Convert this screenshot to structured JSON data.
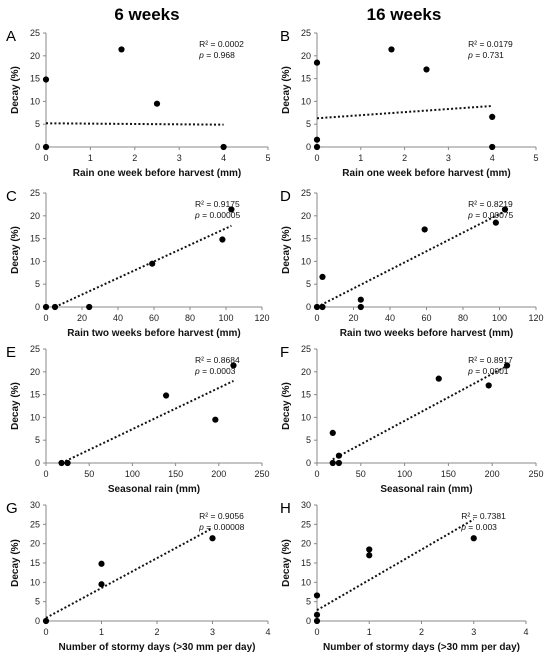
{
  "columns": [
    "6 weeks",
    "16 weeks"
  ],
  "chart_data": [
    {
      "panel": "A",
      "type": "scatter",
      "xlabel": "Rain one week before harvest (mm)",
      "ylabel": "Decay (%)",
      "xlim": [
        0,
        5
      ],
      "ylim": [
        0,
        25
      ],
      "xticks": [
        0,
        1,
        2,
        3,
        4,
        5
      ],
      "yticks": [
        0,
        5,
        10,
        15,
        20,
        25
      ],
      "points": [
        [
          0,
          14.8
        ],
        [
          0,
          0
        ],
        [
          1.7,
          21.4
        ],
        [
          2.5,
          9.5
        ],
        [
          4,
          0
        ]
      ],
      "trend": {
        "x": [
          0,
          4
        ],
        "y": [
          5.2,
          4.9
        ]
      },
      "r2_text": "R² = 0.0002",
      "p_label": "p",
      "p_text": " = 0.968"
    },
    {
      "panel": "B",
      "type": "scatter",
      "xlabel": "Rain one week before harvest (mm)",
      "ylabel": "Decay (%)",
      "xlim": [
        0,
        5
      ],
      "ylim": [
        0,
        25
      ],
      "xticks": [
        0,
        1,
        2,
        3,
        4,
        5
      ],
      "yticks": [
        0,
        5,
        10,
        15,
        20,
        25
      ],
      "points": [
        [
          0,
          18.5
        ],
        [
          0,
          1.6
        ],
        [
          0,
          0
        ],
        [
          1.7,
          21.4
        ],
        [
          2.5,
          17.0
        ],
        [
          4,
          6.6
        ],
        [
          4,
          0
        ]
      ],
      "trend": {
        "x": [
          0,
          4
        ],
        "y": [
          6.3,
          9.0
        ]
      },
      "r2_text": "R² = 0.0179",
      "p_label": "p",
      "p_text": " = 0.731"
    },
    {
      "panel": "C",
      "type": "scatter",
      "xlabel": "Rain two weeks before harvest (mm)",
      "ylabel": "Decay (%)",
      "xlim": [
        0,
        120
      ],
      "ylim": [
        0,
        25
      ],
      "xticks": [
        0,
        20,
        40,
        60,
        80,
        100,
        120
      ],
      "yticks": [
        0,
        5,
        10,
        15,
        20,
        25
      ],
      "points": [
        [
          0,
          0
        ],
        [
          5,
          0
        ],
        [
          24,
          0
        ],
        [
          59,
          9.5
        ],
        [
          98,
          14.8
        ],
        [
          103,
          21.4
        ]
      ],
      "trend": {
        "x": [
          5,
          103
        ],
        "y": [
          0,
          17.8
        ]
      },
      "r2_text": "R² = 0.9175",
      "p_label": "p",
      "p_text": " = 0.00005"
    },
    {
      "panel": "D",
      "type": "scatter",
      "xlabel": "Rain two weeks before harvest (mm)",
      "ylabel": "Decay (%)",
      "xlim": [
        0,
        120
      ],
      "ylim": [
        0,
        25
      ],
      "xticks": [
        0,
        20,
        40,
        60,
        80,
        100,
        120
      ],
      "yticks": [
        0,
        5,
        10,
        15,
        20,
        25
      ],
      "points": [
        [
          0,
          0
        ],
        [
          3,
          0
        ],
        [
          3,
          6.6
        ],
        [
          24,
          1.6
        ],
        [
          24,
          0
        ],
        [
          59,
          17.0
        ],
        [
          98,
          18.5
        ],
        [
          103,
          21.4
        ]
      ],
      "trend": {
        "x": [
          0,
          103
        ],
        "y": [
          0,
          21.0
        ]
      },
      "r2_text": "R² = 0.8219",
      "p_label": "p",
      "p_text": " = 0.00075"
    },
    {
      "panel": "E",
      "type": "scatter",
      "xlabel": "Seasonal rain (mm)",
      "ylabel": "Decay (%)",
      "xlim": [
        0,
        250
      ],
      "ylim": [
        0,
        25
      ],
      "xticks": [
        0,
        50,
        100,
        150,
        200,
        250
      ],
      "yticks": [
        0,
        5,
        10,
        15,
        20,
        25
      ],
      "points": [
        [
          18,
          0
        ],
        [
          25,
          0
        ],
        [
          139,
          14.8
        ],
        [
          196,
          9.5
        ],
        [
          217,
          21.4
        ]
      ],
      "trend": {
        "x": [
          18,
          217
        ],
        "y": [
          0,
          18.0
        ]
      },
      "r2_text": "R² = 0.8684",
      "p_label": "p",
      "p_text": " = 0.0003"
    },
    {
      "panel": "F",
      "type": "scatter",
      "xlabel": "Seasonal rain (mm)",
      "ylabel": "Decay (%)",
      "xlim": [
        0,
        250
      ],
      "ylim": [
        0,
        25
      ],
      "xticks": [
        0,
        50,
        100,
        150,
        200,
        250
      ],
      "yticks": [
        0,
        5,
        10,
        15,
        20,
        25
      ],
      "points": [
        [
          18,
          6.6
        ],
        [
          18,
          0
        ],
        [
          25,
          1.6
        ],
        [
          25,
          0
        ],
        [
          139,
          18.5
        ],
        [
          196,
          17.0
        ],
        [
          217,
          21.4
        ]
      ],
      "trend": {
        "x": [
          18,
          217
        ],
        "y": [
          0.8,
          21.3
        ]
      },
      "r2_text": "R² = 0.8917",
      "p_label": "p",
      "p_text": " = 0.0001"
    },
    {
      "panel": "G",
      "type": "scatter",
      "xlabel": "Number of stormy days (>30 mm per day)",
      "ylabel": "Decay (%)",
      "xlim": [
        0,
        4
      ],
      "ylim": [
        0,
        30
      ],
      "xticks": [
        0,
        1,
        2,
        3,
        4
      ],
      "yticks": [
        0,
        5,
        10,
        15,
        20,
        25,
        30
      ],
      "points": [
        [
          0,
          0
        ],
        [
          1,
          14.8
        ],
        [
          1,
          9.5
        ],
        [
          3,
          21.4
        ]
      ],
      "trend": {
        "x": [
          0,
          3
        ],
        "y": [
          0.8,
          24.0
        ]
      },
      "r2_text": "R² = 0.9056",
      "p_label": "p",
      "p_text": " = 0.00008"
    },
    {
      "panel": "H",
      "type": "scatter",
      "xlabel": "Number of stormy days (>30 mm per day)",
      "ylabel": "Decay (%)",
      "xlim": [
        0,
        4
      ],
      "ylim": [
        0,
        30
      ],
      "xticks": [
        0,
        1,
        2,
        3,
        4
      ],
      "yticks": [
        0,
        5,
        10,
        15,
        20,
        25,
        30
      ],
      "points": [
        [
          0,
          6.6
        ],
        [
          0,
          1.6
        ],
        [
          0,
          0
        ],
        [
          1,
          18.5
        ],
        [
          1,
          17.0
        ],
        [
          3,
          21.4
        ]
      ],
      "trend": {
        "x": [
          0,
          3
        ],
        "y": [
          2.8,
          26.3
        ]
      },
      "r2_text": "R² = 0.7381",
      "p_label": "p",
      "p_text": " = 0.003"
    }
  ]
}
